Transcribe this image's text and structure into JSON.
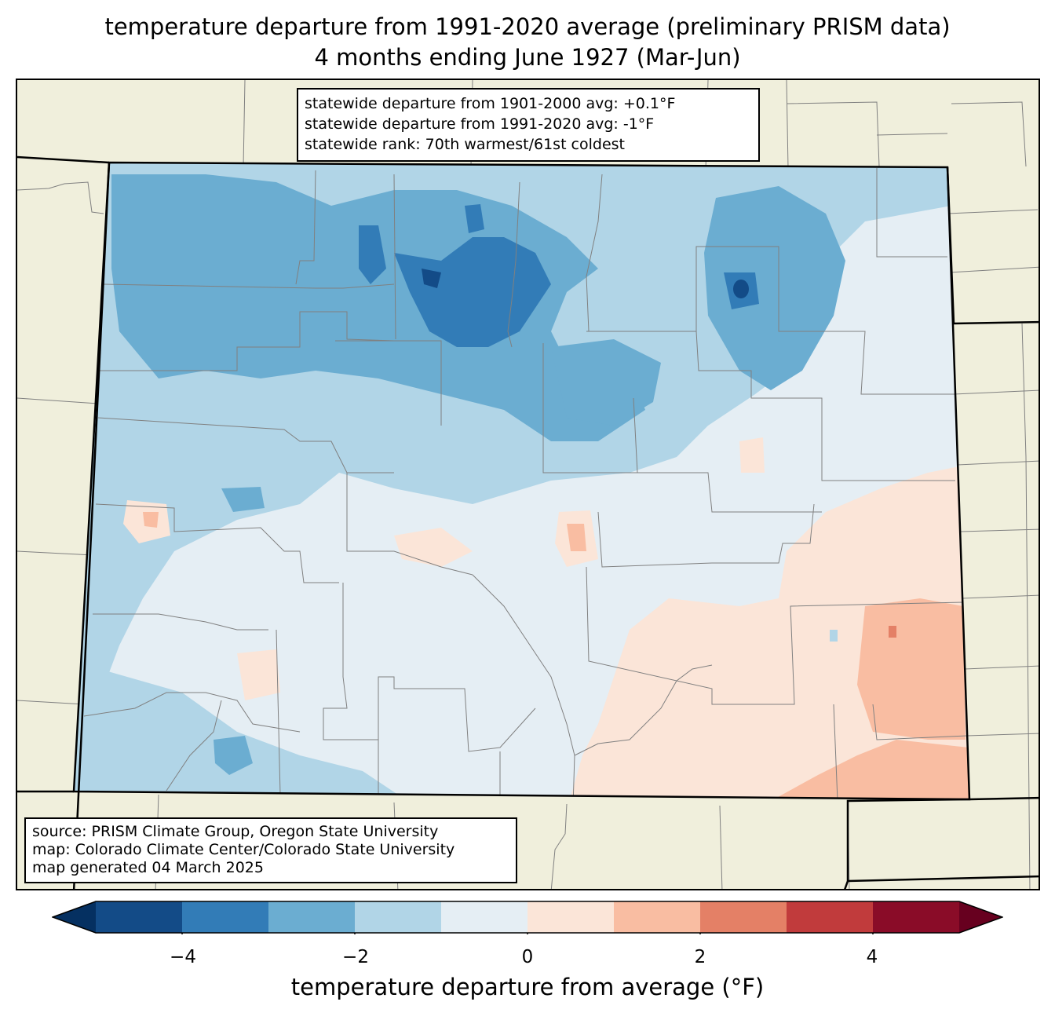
{
  "title_line1": "temperature departure from 1991-2020 average (preliminary PRISM data)",
  "title_line2": "4 months ending June 1927 (Mar-Jun)",
  "stats": {
    "line1": "statewide departure from 1901-2000 avg: +0.1°F",
    "line2": "statewide departure from 1991-2020 avg: -1°F",
    "line3": "statewide rank: 70th warmest/61st coldest"
  },
  "source": {
    "line1": "source: PRISM Climate Group, Oregon State University",
    "line2": "map: Colorado Climate Center/Colorado State University",
    "line3": "map generated 04 March 2025"
  },
  "colorbar": {
    "label": "temperature departure from average (°F)",
    "min": -5,
    "max": 5,
    "step": 1,
    "ticks": [
      "−4",
      "−2",
      "0",
      "2",
      "4"
    ],
    "tick_values": [
      -4,
      -2,
      0,
      2,
      4
    ],
    "under_color": "#053061",
    "over_color": "#67001f",
    "colors": [
      "#134b87",
      "#327cb7",
      "#6badd1",
      "#b1d5e7",
      "#e5eef4",
      "#fbe5d8",
      "#f9bda2",
      "#e48066",
      "#c13b3c",
      "#8a0c28"
    ]
  },
  "map_colors": {
    "background": "#f0efdc",
    "state_outline": "#000000",
    "county_lines": "#808080"
  }
}
